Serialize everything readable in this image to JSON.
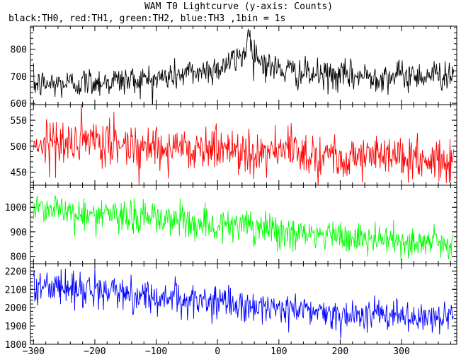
{
  "chart_data": {
    "type": "line",
    "title": "WAM T0 Lightcurve (y-axis: Counts)",
    "subtitle": "black:TH0, red:TH1, green:TH2, blue:TH3 ,1bin = 1s",
    "xlabel": "",
    "ylabel": "",
    "grid": false,
    "xlim": [
      -305,
      390
    ],
    "x_ticks": [
      -300,
      -200,
      -100,
      0,
      100,
      200,
      300
    ],
    "x_tick_labels": [
      "−300",
      "−200",
      "−100",
      "0",
      "100",
      "200",
      "300"
    ],
    "bin_seconds": 1,
    "panels": [
      {
        "series": "TH0",
        "color": "#000000",
        "ylim": [
          595,
          885
        ],
        "y_ticks": [
          600,
          700,
          800
        ],
        "trend": [
          [
            -300,
            670
          ],
          [
            -250,
            672
          ],
          [
            -200,
            680
          ],
          [
            -150,
            684
          ],
          [
            -100,
            690
          ],
          [
            -50,
            710
          ],
          [
            0,
            730
          ],
          [
            30,
            760
          ],
          [
            45,
            790
          ],
          [
            50,
            840
          ],
          [
            55,
            820
          ],
          [
            65,
            770
          ],
          [
            80,
            740
          ],
          [
            100,
            725
          ],
          [
            150,
            705
          ],
          [
            200,
            700
          ],
          [
            250,
            700
          ],
          [
            300,
            702
          ],
          [
            350,
            705
          ],
          [
            385,
            708
          ]
        ],
        "noise": 28,
        "peak": {
          "x": 50,
          "y": 875
        }
      },
      {
        "series": "TH1",
        "color": "#ff0000",
        "ylim": [
          425,
          580
        ],
        "y_ticks": [
          450,
          500,
          550
        ],
        "trend": [
          [
            -300,
            508
          ],
          [
            -200,
            505
          ],
          [
            -100,
            500
          ],
          [
            0,
            495
          ],
          [
            100,
            490
          ],
          [
            200,
            483
          ],
          [
            300,
            478
          ],
          [
            385,
            470
          ]
        ],
        "noise": 22
      },
      {
        "series": "TH2",
        "color": "#00ff00",
        "ylim": [
          770,
          1090
        ],
        "y_ticks": [
          800,
          900,
          1000
        ],
        "trend": [
          [
            -300,
            1010
          ],
          [
            -250,
            985
          ],
          [
            -200,
            968
          ],
          [
            -100,
            955
          ],
          [
            0,
            930
          ],
          [
            100,
            900
          ],
          [
            200,
            878
          ],
          [
            300,
            862
          ],
          [
            385,
            850
          ]
        ],
        "noise": 35
      },
      {
        "series": "TH3",
        "color": "#0000ff",
        "ylim": [
          1800,
          2240
        ],
        "y_ticks": [
          1800,
          1900,
          2000,
          2100,
          2200
        ],
        "trend": [
          [
            -300,
            2120
          ],
          [
            -250,
            2110
          ],
          [
            -200,
            2095
          ],
          [
            -100,
            2060
          ],
          [
            0,
            2025
          ],
          [
            100,
            1995
          ],
          [
            200,
            1970
          ],
          [
            300,
            1950
          ],
          [
            385,
            1930
          ]
        ],
        "noise": 45
      }
    ]
  }
}
